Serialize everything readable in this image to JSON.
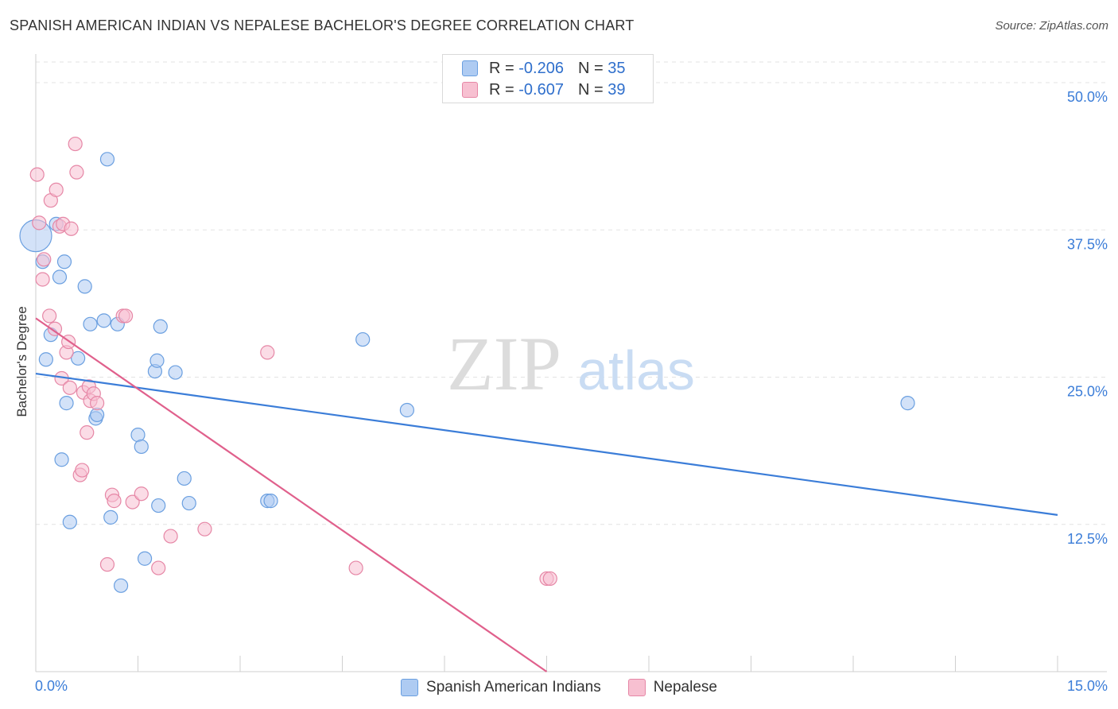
{
  "title": "SPANISH AMERICAN INDIAN VS NEPALESE BACHELOR'S DEGREE CORRELATION CHART",
  "source": "Source: ZipAtlas.com",
  "watermark": {
    "zip": "ZIP",
    "atlas": "atlas"
  },
  "legend": {
    "r_label": "R =",
    "n_label": "N =",
    "rows": [
      {
        "r": "-0.206",
        "n": "35",
        "fill": "#aecbf2",
        "stroke": "#6a9fe0"
      },
      {
        "r": "-0.607",
        "n": "39",
        "fill": "#f7c0d1",
        "stroke": "#e687a6"
      }
    ]
  },
  "chart_data": {
    "type": "scatter",
    "xlabel": "",
    "ylabel": "Bachelor's Degree",
    "xlim": [
      0,
      15
    ],
    "ylim": [
      0,
      50
    ],
    "x_tick_labels": [
      "0.0%",
      "15.0%"
    ],
    "y_tick_labels": [
      "12.5%",
      "25.0%",
      "37.5%",
      "50.0%"
    ],
    "y_ticks": [
      12.5,
      25,
      37.5,
      50
    ],
    "series": [
      {
        "name": "Spanish American Indians",
        "color": "#3b7dd8",
        "fill": "#aecbf2",
        "stroke": "#6a9fe0",
        "points": [
          [
            0.0,
            37.0
          ],
          [
            0.1,
            34.8
          ],
          [
            0.15,
            26.5
          ],
          [
            0.22,
            28.6
          ],
          [
            0.3,
            38.0
          ],
          [
            0.35,
            33.5
          ],
          [
            0.42,
            34.8
          ],
          [
            0.45,
            22.8
          ],
          [
            0.5,
            12.7
          ],
          [
            0.38,
            18.0
          ],
          [
            0.62,
            26.6
          ],
          [
            0.72,
            32.7
          ],
          [
            0.8,
            29.5
          ],
          [
            0.88,
            21.5
          ],
          [
            0.9,
            21.8
          ],
          [
            1.0,
            29.8
          ],
          [
            1.1,
            13.1
          ],
          [
            1.2,
            29.5
          ],
          [
            1.25,
            7.3
          ],
          [
            1.5,
            20.1
          ],
          [
            1.55,
            19.1
          ],
          [
            1.6,
            9.6
          ],
          [
            1.8,
            14.1
          ],
          [
            1.75,
            25.5
          ],
          [
            1.78,
            26.4
          ],
          [
            1.83,
            29.3
          ],
          [
            2.05,
            25.4
          ],
          [
            2.18,
            16.4
          ],
          [
            2.25,
            14.3
          ],
          [
            3.4,
            14.5
          ],
          [
            3.45,
            14.5
          ],
          [
            4.8,
            28.2
          ],
          [
            5.45,
            22.2
          ],
          [
            12.8,
            22.8
          ],
          [
            1.05,
            43.5
          ]
        ],
        "trend": {
          "x": [
            0,
            15
          ],
          "y": [
            25.3,
            13.3
          ]
        }
      },
      {
        "name": "Nepalese",
        "color": "#e0608c",
        "fill": "#f7c0d1",
        "stroke": "#e687a6",
        "points": [
          [
            0.02,
            42.2
          ],
          [
            0.05,
            38.1
          ],
          [
            0.1,
            33.3
          ],
          [
            0.12,
            35.0
          ],
          [
            0.2,
            30.2
          ],
          [
            0.22,
            40.0
          ],
          [
            0.28,
            29.1
          ],
          [
            0.3,
            40.9
          ],
          [
            0.38,
            24.9
          ],
          [
            0.35,
            37.8
          ],
          [
            0.4,
            38.0
          ],
          [
            0.45,
            27.1
          ],
          [
            0.48,
            28.0
          ],
          [
            0.5,
            24.1
          ],
          [
            0.52,
            37.6
          ],
          [
            0.6,
            42.4
          ],
          [
            0.65,
            16.7
          ],
          [
            0.68,
            17.1
          ],
          [
            0.7,
            23.7
          ],
          [
            0.75,
            20.3
          ],
          [
            0.78,
            24.2
          ],
          [
            0.8,
            23.0
          ],
          [
            0.85,
            23.6
          ],
          [
            0.9,
            22.8
          ],
          [
            1.05,
            9.1
          ],
          [
            1.12,
            15.0
          ],
          [
            1.15,
            14.5
          ],
          [
            1.28,
            30.2
          ],
          [
            1.32,
            30.2
          ],
          [
            1.42,
            14.4
          ],
          [
            1.55,
            15.1
          ],
          [
            1.8,
            8.8
          ],
          [
            1.98,
            11.5
          ],
          [
            2.48,
            12.1
          ],
          [
            3.4,
            27.1
          ],
          [
            4.7,
            8.8
          ],
          [
            7.5,
            7.9
          ],
          [
            7.55,
            7.9
          ],
          [
            0.58,
            44.8
          ]
        ],
        "trend": {
          "x": [
            0,
            7.5
          ],
          "y": [
            30.0,
            0.0
          ]
        }
      }
    ]
  }
}
